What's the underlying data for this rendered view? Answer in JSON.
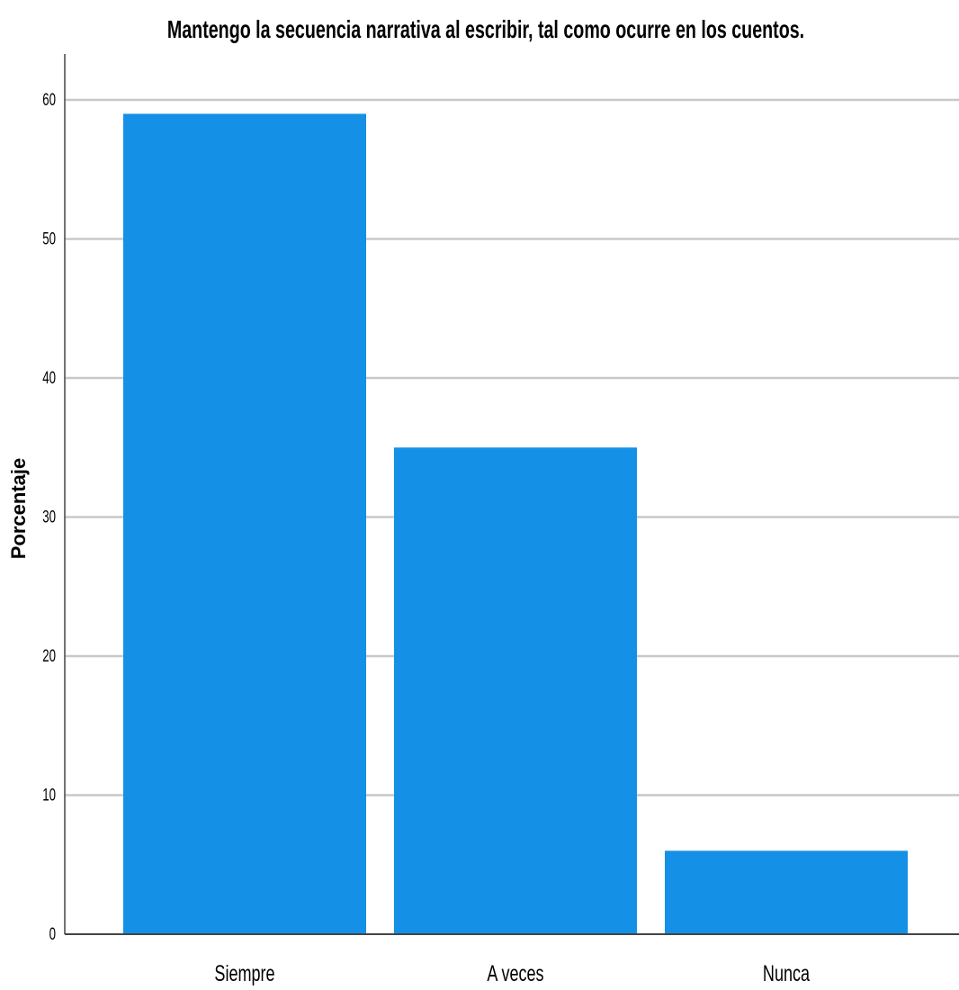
{
  "chart_data": {
    "type": "bar",
    "title": "Mantengo la secuencia narrativa al escribir, tal como ocurre en los cuentos.",
    "xlabel": "",
    "ylabel": "Porcentaje",
    "categories": [
      "Siempre",
      "A veces",
      "Nunca"
    ],
    "values": [
      59,
      35,
      6
    ],
    "ylim": [
      0,
      63
    ],
    "yticks": [
      0,
      10,
      20,
      30,
      40,
      50,
      60
    ],
    "grid": true,
    "bar_color": "#1490E6",
    "grid_color": "#c8c8c8",
    "axis_color": "#444444"
  }
}
